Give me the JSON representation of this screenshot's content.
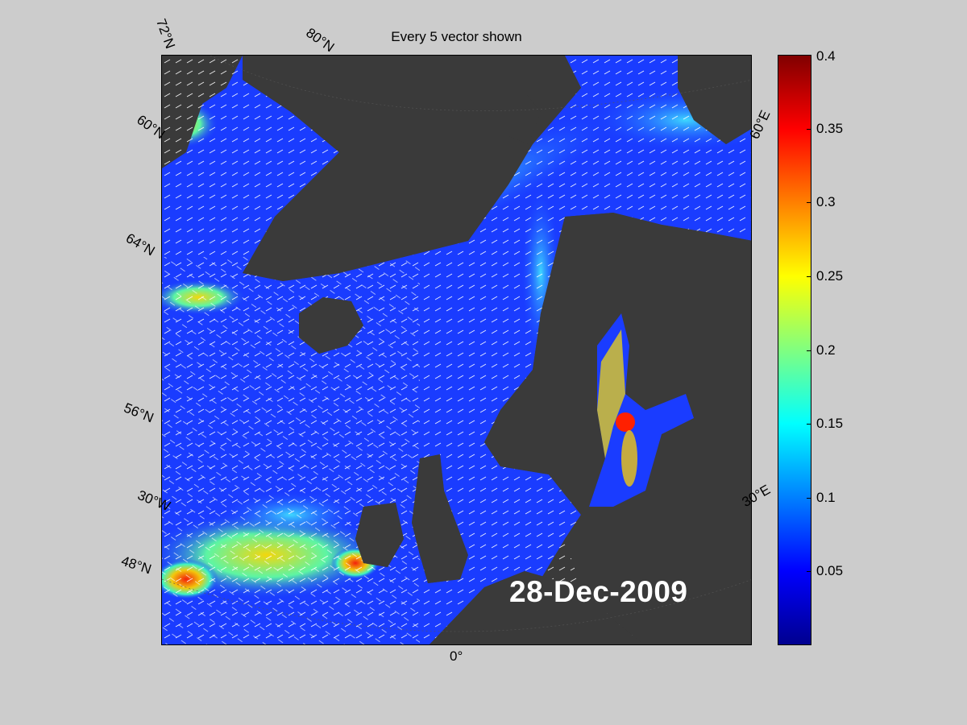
{
  "title": "Every 5 vector shown",
  "date": "28-Dec-2009",
  "graticule_labels": {
    "lat_72": "72°N",
    "lat_80": "80°N",
    "lat_60": "60°N",
    "lat_64": "64°N",
    "lat_56": "56°N",
    "lon_30w": "30°W",
    "lat_48": "48°N",
    "lon_0": "0°",
    "lon_30e": "30°E",
    "lon_60e": "60°E"
  },
  "colorbar": {
    "min": 0,
    "max": 0.4,
    "colormap": "jet",
    "ticks": [
      "0.05",
      "0.1",
      "0.15",
      "0.2",
      "0.25",
      "0.3",
      "0.35",
      "0.4"
    ]
  },
  "colors": {
    "land": "#3a3a3a",
    "ocean_base": "#1a3cff",
    "vectors": "#ffffff",
    "background": "#cccccc"
  }
}
